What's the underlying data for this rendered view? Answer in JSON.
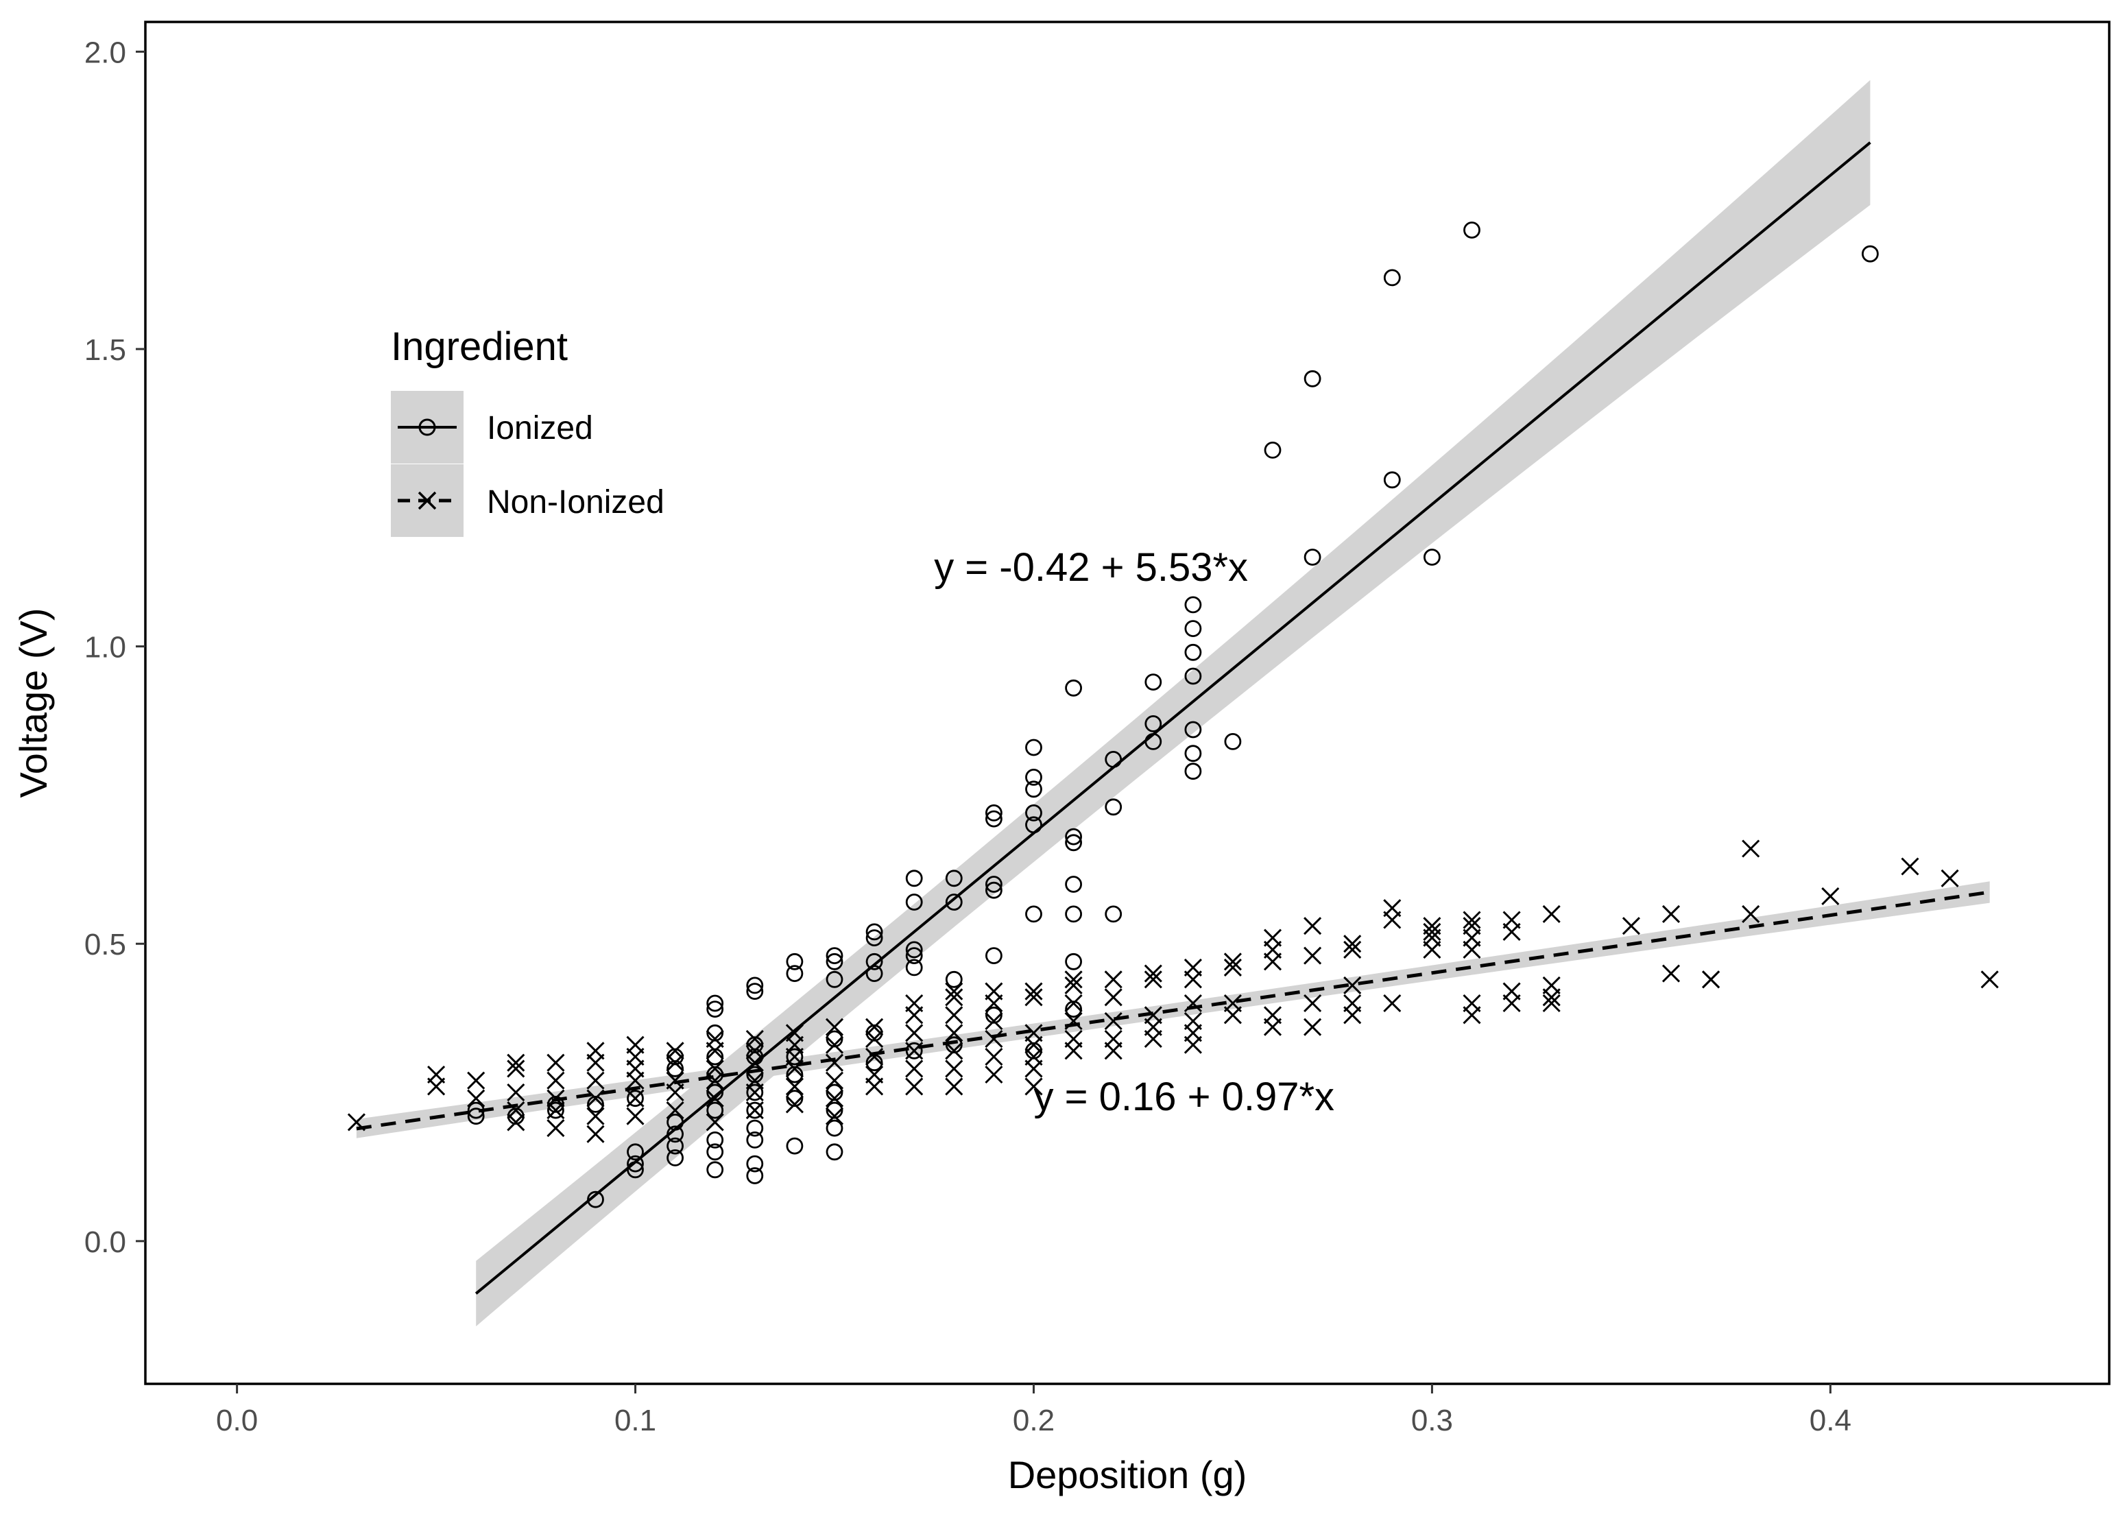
{
  "chart_data": {
    "type": "scatter",
    "title": "",
    "xlabel": "Deposition (g)",
    "ylabel": "Voltage (V)",
    "xlim": [
      -0.023,
      0.47
    ],
    "ylim": [
      -0.24,
      2.05
    ],
    "xticks": [
      0.0,
      0.1,
      0.2,
      0.3,
      0.4
    ],
    "xtick_labels": [
      "0.0",
      "0.1",
      "0.2",
      "0.3",
      "0.4"
    ],
    "yticks": [
      0.0,
      0.5,
      1.0,
      1.5,
      2.0
    ],
    "ytick_labels": [
      "0.0",
      "0.5",
      "1.0",
      "1.5",
      "2.0"
    ],
    "grid": false,
    "legend": {
      "title": "Ingredient",
      "position": "upper-left",
      "entries": [
        {
          "label": "Ionized",
          "marker": "circle-open",
          "line": "solid"
        },
        {
          "label": "Non-Ionized",
          "marker": "x",
          "line": "dashed"
        }
      ]
    },
    "colors": {
      "points": "#000000",
      "band": "#d3d3d3",
      "frame": "#000000"
    },
    "series": [
      {
        "name": "Ionized",
        "marker": "circle-open",
        "fit": {
          "intercept": -0.42,
          "slope": 5.53,
          "x_range": [
            0.06,
            0.41
          ],
          "ci_halfwidth": [
            0.055,
            0.025,
            0.105
          ],
          "label": "y = -0.42 + 5.53*x"
        },
        "points": [
          [
            0.06,
            0.21
          ],
          [
            0.06,
            0.22
          ],
          [
            0.07,
            0.21
          ],
          [
            0.08,
            0.22
          ],
          [
            0.08,
            0.23
          ],
          [
            0.09,
            0.07
          ],
          [
            0.09,
            0.23
          ],
          [
            0.1,
            0.12
          ],
          [
            0.1,
            0.13
          ],
          [
            0.1,
            0.15
          ],
          [
            0.1,
            0.24
          ],
          [
            0.11,
            0.14
          ],
          [
            0.11,
            0.16
          ],
          [
            0.11,
            0.18
          ],
          [
            0.11,
            0.2
          ],
          [
            0.11,
            0.29
          ],
          [
            0.11,
            0.31
          ],
          [
            0.12,
            0.12
          ],
          [
            0.12,
            0.15
          ],
          [
            0.12,
            0.17
          ],
          [
            0.12,
            0.22
          ],
          [
            0.12,
            0.25
          ],
          [
            0.12,
            0.28
          ],
          [
            0.12,
            0.31
          ],
          [
            0.12,
            0.35
          ],
          [
            0.12,
            0.39
          ],
          [
            0.12,
            0.4
          ],
          [
            0.13,
            0.11
          ],
          [
            0.13,
            0.13
          ],
          [
            0.13,
            0.17
          ],
          [
            0.13,
            0.19
          ],
          [
            0.13,
            0.22
          ],
          [
            0.13,
            0.25
          ],
          [
            0.13,
            0.28
          ],
          [
            0.13,
            0.31
          ],
          [
            0.13,
            0.33
          ],
          [
            0.13,
            0.42
          ],
          [
            0.13,
            0.43
          ],
          [
            0.14,
            0.16
          ],
          [
            0.14,
            0.24
          ],
          [
            0.14,
            0.28
          ],
          [
            0.14,
            0.31
          ],
          [
            0.14,
            0.45
          ],
          [
            0.14,
            0.47
          ],
          [
            0.15,
            0.15
          ],
          [
            0.15,
            0.19
          ],
          [
            0.15,
            0.22
          ],
          [
            0.15,
            0.25
          ],
          [
            0.15,
            0.34
          ],
          [
            0.15,
            0.44
          ],
          [
            0.15,
            0.47
          ],
          [
            0.15,
            0.48
          ],
          [
            0.16,
            0.3
          ],
          [
            0.16,
            0.35
          ],
          [
            0.16,
            0.45
          ],
          [
            0.16,
            0.47
          ],
          [
            0.16,
            0.51
          ],
          [
            0.16,
            0.52
          ],
          [
            0.17,
            0.32
          ],
          [
            0.17,
            0.46
          ],
          [
            0.17,
            0.48
          ],
          [
            0.17,
            0.49
          ],
          [
            0.17,
            0.57
          ],
          [
            0.17,
            0.61
          ],
          [
            0.18,
            0.33
          ],
          [
            0.18,
            0.44
          ],
          [
            0.18,
            0.57
          ],
          [
            0.18,
            0.61
          ],
          [
            0.19,
            0.38
          ],
          [
            0.19,
            0.48
          ],
          [
            0.19,
            0.59
          ],
          [
            0.19,
            0.6
          ],
          [
            0.19,
            0.71
          ],
          [
            0.19,
            0.72
          ],
          [
            0.2,
            0.32
          ],
          [
            0.2,
            0.55
          ],
          [
            0.2,
            0.7
          ],
          [
            0.2,
            0.72
          ],
          [
            0.2,
            0.76
          ],
          [
            0.2,
            0.78
          ],
          [
            0.2,
            0.83
          ],
          [
            0.21,
            0.39
          ],
          [
            0.21,
            0.47
          ],
          [
            0.21,
            0.55
          ],
          [
            0.21,
            0.6
          ],
          [
            0.21,
            0.67
          ],
          [
            0.21,
            0.68
          ],
          [
            0.21,
            0.93
          ],
          [
            0.22,
            0.55
          ],
          [
            0.22,
            0.73
          ],
          [
            0.22,
            0.81
          ],
          [
            0.23,
            0.84
          ],
          [
            0.23,
            0.87
          ],
          [
            0.23,
            0.94
          ],
          [
            0.24,
            0.79
          ],
          [
            0.24,
            0.82
          ],
          [
            0.24,
            0.86
          ],
          [
            0.24,
            0.95
          ],
          [
            0.24,
            0.99
          ],
          [
            0.24,
            1.03
          ],
          [
            0.24,
            1.07
          ],
          [
            0.25,
            0.84
          ],
          [
            0.26,
            1.33
          ],
          [
            0.27,
            1.15
          ],
          [
            0.27,
            1.45
          ],
          [
            0.29,
            1.28
          ],
          [
            0.29,
            1.62
          ],
          [
            0.3,
            1.15
          ],
          [
            0.31,
            1.7
          ],
          [
            0.41,
            1.66
          ]
        ]
      },
      {
        "name": "Non-Ionized",
        "marker": "x",
        "fit": {
          "intercept": 0.16,
          "slope": 0.97,
          "x_range": [
            0.03,
            0.44
          ],
          "ci_halfwidth": [
            0.016,
            0.007,
            0.018
          ],
          "label": "y = 0.16 + 0.97*x"
        },
        "points": [
          [
            0.03,
            0.2
          ],
          [
            0.05,
            0.26
          ],
          [
            0.05,
            0.28
          ],
          [
            0.06,
            0.24
          ],
          [
            0.06,
            0.27
          ],
          [
            0.07,
            0.2
          ],
          [
            0.07,
            0.22
          ],
          [
            0.07,
            0.25
          ],
          [
            0.07,
            0.29
          ],
          [
            0.07,
            0.3
          ],
          [
            0.08,
            0.19
          ],
          [
            0.08,
            0.22
          ],
          [
            0.08,
            0.24
          ],
          [
            0.08,
            0.27
          ],
          [
            0.08,
            0.3
          ],
          [
            0.09,
            0.18
          ],
          [
            0.09,
            0.21
          ],
          [
            0.09,
            0.24
          ],
          [
            0.09,
            0.27
          ],
          [
            0.09,
            0.3
          ],
          [
            0.09,
            0.32
          ],
          [
            0.1,
            0.21
          ],
          [
            0.1,
            0.24
          ],
          [
            0.1,
            0.27
          ],
          [
            0.1,
            0.29
          ],
          [
            0.1,
            0.31
          ],
          [
            0.1,
            0.33
          ],
          [
            0.11,
            0.22
          ],
          [
            0.11,
            0.25
          ],
          [
            0.11,
            0.27
          ],
          [
            0.11,
            0.3
          ],
          [
            0.11,
            0.32
          ],
          [
            0.12,
            0.2
          ],
          [
            0.12,
            0.24
          ],
          [
            0.12,
            0.27
          ],
          [
            0.12,
            0.29
          ],
          [
            0.12,
            0.32
          ],
          [
            0.12,
            0.34
          ],
          [
            0.13,
            0.22
          ],
          [
            0.13,
            0.25
          ],
          [
            0.13,
            0.27
          ],
          [
            0.13,
            0.3
          ],
          [
            0.13,
            0.32
          ],
          [
            0.13,
            0.34
          ],
          [
            0.14,
            0.23
          ],
          [
            0.14,
            0.26
          ],
          [
            0.14,
            0.29
          ],
          [
            0.14,
            0.31
          ],
          [
            0.14,
            0.33
          ],
          [
            0.14,
            0.35
          ],
          [
            0.15,
            0.21
          ],
          [
            0.15,
            0.24
          ],
          [
            0.15,
            0.27
          ],
          [
            0.15,
            0.3
          ],
          [
            0.15,
            0.33
          ],
          [
            0.15,
            0.36
          ],
          [
            0.16,
            0.26
          ],
          [
            0.16,
            0.28
          ],
          [
            0.16,
            0.31
          ],
          [
            0.16,
            0.34
          ],
          [
            0.16,
            0.36
          ],
          [
            0.17,
            0.26
          ],
          [
            0.17,
            0.29
          ],
          [
            0.17,
            0.32
          ],
          [
            0.17,
            0.35
          ],
          [
            0.17,
            0.38
          ],
          [
            0.17,
            0.4
          ],
          [
            0.18,
            0.26
          ],
          [
            0.18,
            0.29
          ],
          [
            0.18,
            0.32
          ],
          [
            0.18,
            0.35
          ],
          [
            0.18,
            0.38
          ],
          [
            0.18,
            0.41
          ],
          [
            0.18,
            0.42
          ],
          [
            0.19,
            0.28
          ],
          [
            0.19,
            0.31
          ],
          [
            0.19,
            0.34
          ],
          [
            0.19,
            0.37
          ],
          [
            0.19,
            0.4
          ],
          [
            0.19,
            0.42
          ],
          [
            0.2,
            0.26
          ],
          [
            0.2,
            0.29
          ],
          [
            0.2,
            0.31
          ],
          [
            0.2,
            0.33
          ],
          [
            0.2,
            0.35
          ],
          [
            0.2,
            0.41
          ],
          [
            0.2,
            0.42
          ],
          [
            0.21,
            0.32
          ],
          [
            0.21,
            0.34
          ],
          [
            0.21,
            0.37
          ],
          [
            0.21,
            0.4
          ],
          [
            0.21,
            0.43
          ],
          [
            0.21,
            0.44
          ],
          [
            0.22,
            0.32
          ],
          [
            0.22,
            0.34
          ],
          [
            0.22,
            0.37
          ],
          [
            0.22,
            0.41
          ],
          [
            0.22,
            0.44
          ],
          [
            0.23,
            0.34
          ],
          [
            0.23,
            0.36
          ],
          [
            0.23,
            0.38
          ],
          [
            0.23,
            0.44
          ],
          [
            0.23,
            0.45
          ],
          [
            0.24,
            0.33
          ],
          [
            0.24,
            0.35
          ],
          [
            0.24,
            0.37
          ],
          [
            0.24,
            0.4
          ],
          [
            0.24,
            0.44
          ],
          [
            0.24,
            0.46
          ],
          [
            0.25,
            0.38
          ],
          [
            0.25,
            0.4
          ],
          [
            0.25,
            0.46
          ],
          [
            0.25,
            0.47
          ],
          [
            0.26,
            0.36
          ],
          [
            0.26,
            0.38
          ],
          [
            0.26,
            0.47
          ],
          [
            0.26,
            0.49
          ],
          [
            0.26,
            0.51
          ],
          [
            0.27,
            0.36
          ],
          [
            0.27,
            0.4
          ],
          [
            0.27,
            0.48
          ],
          [
            0.27,
            0.53
          ],
          [
            0.28,
            0.38
          ],
          [
            0.28,
            0.4
          ],
          [
            0.28,
            0.43
          ],
          [
            0.28,
            0.49
          ],
          [
            0.28,
            0.5
          ],
          [
            0.29,
            0.4
          ],
          [
            0.29,
            0.54
          ],
          [
            0.29,
            0.56
          ],
          [
            0.3,
            0.49
          ],
          [
            0.3,
            0.51
          ],
          [
            0.3,
            0.52
          ],
          [
            0.3,
            0.53
          ],
          [
            0.31,
            0.38
          ],
          [
            0.31,
            0.4
          ],
          [
            0.31,
            0.49
          ],
          [
            0.31,
            0.51
          ],
          [
            0.31,
            0.53
          ],
          [
            0.31,
            0.54
          ],
          [
            0.32,
            0.4
          ],
          [
            0.32,
            0.42
          ],
          [
            0.32,
            0.52
          ],
          [
            0.32,
            0.54
          ],
          [
            0.33,
            0.4
          ],
          [
            0.33,
            0.41
          ],
          [
            0.33,
            0.43
          ],
          [
            0.33,
            0.55
          ],
          [
            0.35,
            0.53
          ],
          [
            0.36,
            0.45
          ],
          [
            0.36,
            0.55
          ],
          [
            0.37,
            0.44
          ],
          [
            0.37,
            0.44
          ],
          [
            0.38,
            0.55
          ],
          [
            0.38,
            0.66
          ],
          [
            0.4,
            0.58
          ],
          [
            0.42,
            0.63
          ],
          [
            0.43,
            0.61
          ],
          [
            0.44,
            0.44
          ]
        ]
      }
    ],
    "annotations": [
      {
        "text": "y = -0.42 + 5.53*x",
        "x": 0.175,
        "y": 1.11
      },
      {
        "text": "y = 0.16 + 0.97*x",
        "x": 0.2,
        "y": 0.22
      }
    ]
  }
}
